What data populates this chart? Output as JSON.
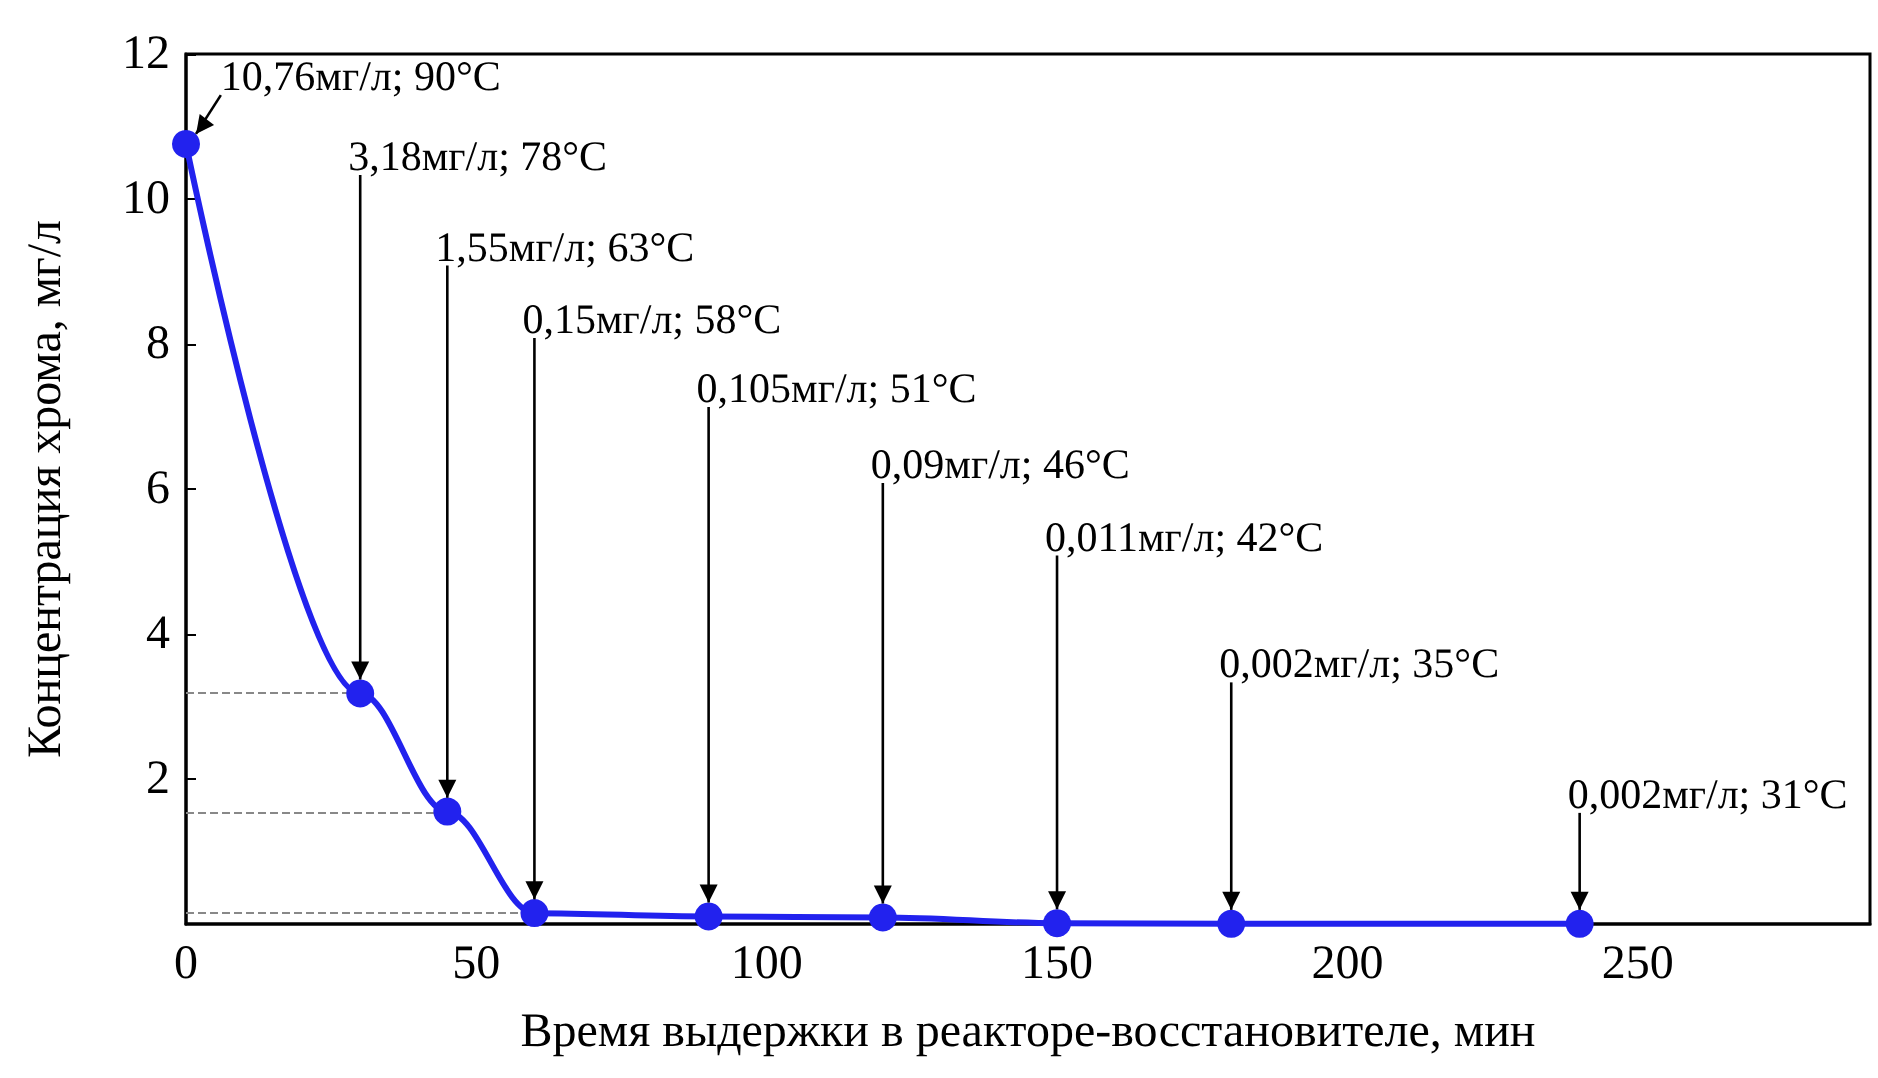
{
  "chart_data": {
    "type": "line",
    "xlabel": "Время выдержки в реакторе-восстановителе, мин",
    "ylabel": "Концентрация хрома, мг/л",
    "x": [
      0,
      30,
      45,
      60,
      90,
      120,
      150,
      180,
      240
    ],
    "series": [
      {
        "color": "#2222ee",
        "values": [
          10.76,
          3.18,
          1.55,
          0.15,
          0.105,
          0.09,
          0.011,
          0.002,
          0.002
        ]
      }
    ],
    "xlim": [
      0,
      290
    ],
    "xticks": [
      0,
      50,
      100,
      150,
      200,
      250
    ],
    "ylim": [
      0,
      12
    ],
    "yticks": [
      2,
      4,
      6,
      8,
      10,
      12
    ],
    "marker": "circle",
    "line_style": "solid",
    "grid": false,
    "ref_lines": [
      {
        "axis": "y",
        "value": 3.18,
        "line_style": "dashed",
        "color": "#888888"
      },
      {
        "axis": "y",
        "value": 1.55,
        "line_style": "dashed",
        "color": "#888888"
      },
      {
        "axis": "y",
        "value": 0.15,
        "line_style": "dashed",
        "color": "#888888"
      }
    ],
    "annotations": [
      {
        "text": "10,76мг/л; 90°C",
        "x": 0,
        "y": 10.76
      },
      {
        "text": "3,18мг/л; 78°C",
        "x": 30,
        "y": 3.18
      },
      {
        "text": "1,55мг/л; 63°C",
        "x": 45,
        "y": 1.55
      },
      {
        "text": "0,15мг/л; 58°C",
        "x": 60,
        "y": 0.15
      },
      {
        "text": "0,105мг/л; 51°C",
        "x": 90,
        "y": 0.105
      },
      {
        "text": "0,09мг/л; 46°C",
        "x": 120,
        "y": 0.09
      },
      {
        "text": "0,011мг/л; 42°C",
        "x": 150,
        "y": 0.011
      },
      {
        "text": "0,002мг/л; 35°C",
        "x": 180,
        "y": 0.002
      },
      {
        "text": "0,002мг/л; 31°C",
        "x": 240,
        "y": 0.002
      }
    ]
  }
}
